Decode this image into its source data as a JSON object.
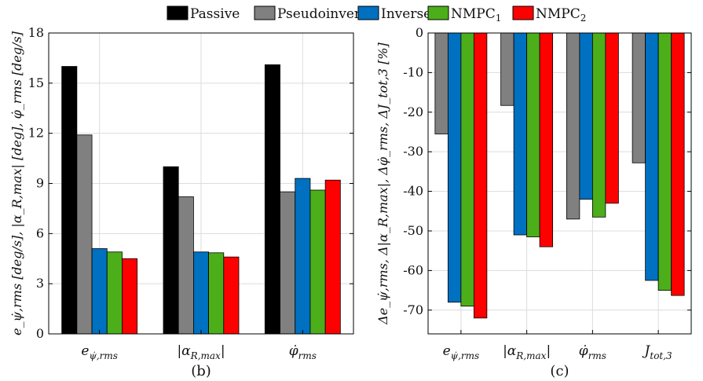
{
  "legend": [
    {
      "label": "Passive",
      "color": "#000000"
    },
    {
      "label": "Pseudoinverse",
      "color": "#808080"
    },
    {
      "label": "Inverse",
      "color": "#0070c0"
    },
    {
      "label": "NMPC",
      "sub": "1",
      "color": "#4caf1a"
    },
    {
      "label": "NMPC",
      "sub": "2",
      "color": "#ff0000"
    }
  ],
  "chart_data": [
    {
      "type": "bar",
      "caption": "(b)",
      "categories": [
        "e_ψ̇,rms",
        "|α_R,max|",
        "φ̇_rms"
      ],
      "ylabel": "e_ψ̇,rms [deg/s], |α_R,max| [deg], φ̇_rms [deg/s]",
      "ylim": [
        0,
        18
      ],
      "yticks": [
        0,
        3,
        6,
        9,
        12,
        15,
        18
      ],
      "grid": true,
      "series": [
        {
          "name": "Passive",
          "values": [
            16.0,
            10.0,
            16.1
          ]
        },
        {
          "name": "Pseudoinverse",
          "values": [
            11.9,
            8.2,
            8.5
          ]
        },
        {
          "name": "Inverse",
          "values": [
            5.1,
            4.9,
            9.3
          ]
        },
        {
          "name": "NMPC1",
          "values": [
            4.9,
            4.85,
            8.6
          ]
        },
        {
          "name": "NMPC2",
          "values": [
            4.5,
            4.6,
            9.2
          ]
        }
      ]
    },
    {
      "type": "bar",
      "caption": "(c)",
      "categories": [
        "e_ψ̇,rms",
        "|α_R,max|",
        "φ̇_rms",
        "J_tot,3"
      ],
      "ylabel": "Δe_ψ̇,rms, Δ|α_R,max|, Δφ̇_rms, ΔJ_tot,3 [%]",
      "ylim": [
        -76,
        0
      ],
      "yticks": [
        0,
        -10,
        -20,
        -30,
        -40,
        -50,
        -60,
        -70
      ],
      "grid": true,
      "series": [
        {
          "name": "Pseudoinverse",
          "values": [
            -25.5,
            -18.3,
            -47.0,
            -32.8
          ]
        },
        {
          "name": "Inverse",
          "values": [
            -68.0,
            -51.0,
            -42.0,
            -62.5
          ]
        },
        {
          "name": "NMPC1",
          "values": [
            -69.0,
            -51.5,
            -46.5,
            -65.0
          ]
        },
        {
          "name": "NMPC2",
          "values": [
            -72.0,
            -54.0,
            -43.0,
            -66.3
          ]
        }
      ]
    }
  ]
}
